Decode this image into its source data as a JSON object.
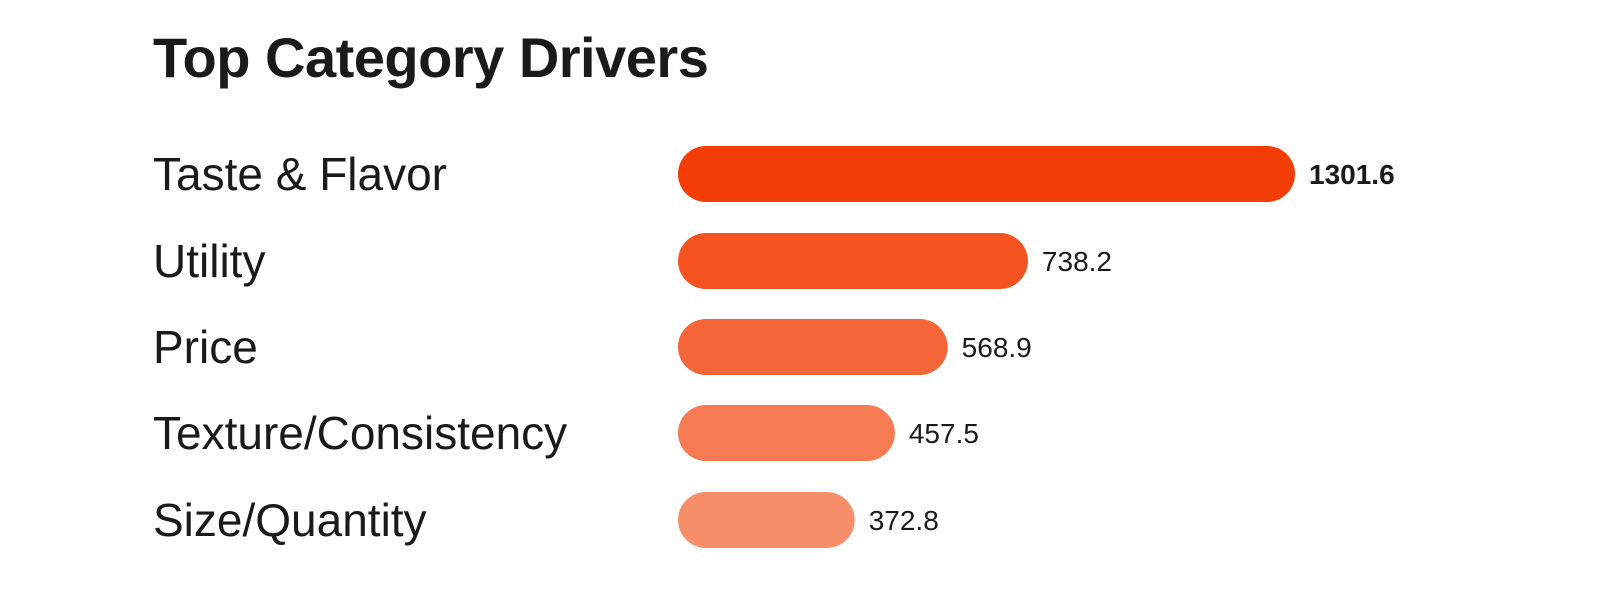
{
  "chart_data": {
    "type": "bar",
    "orientation": "horizontal",
    "title": "Top Category Drivers",
    "categories": [
      "Taste & Flavor",
      "Utility",
      "Price",
      "Texture/Consistency",
      "Size/Quantity"
    ],
    "values": [
      1301.6,
      738.2,
      568.9,
      457.5,
      372.8
    ],
    "value_labels": [
      "1301.6",
      "738.2",
      "568.9",
      "457.5",
      "372.8"
    ],
    "bar_colors": [
      "#f43d04",
      "#f4531f",
      "#f46638",
      "#f67b52",
      "#f68e6a"
    ],
    "grid": false,
    "legend": "none",
    "xlim": [
      0,
      1301.6
    ]
  }
}
